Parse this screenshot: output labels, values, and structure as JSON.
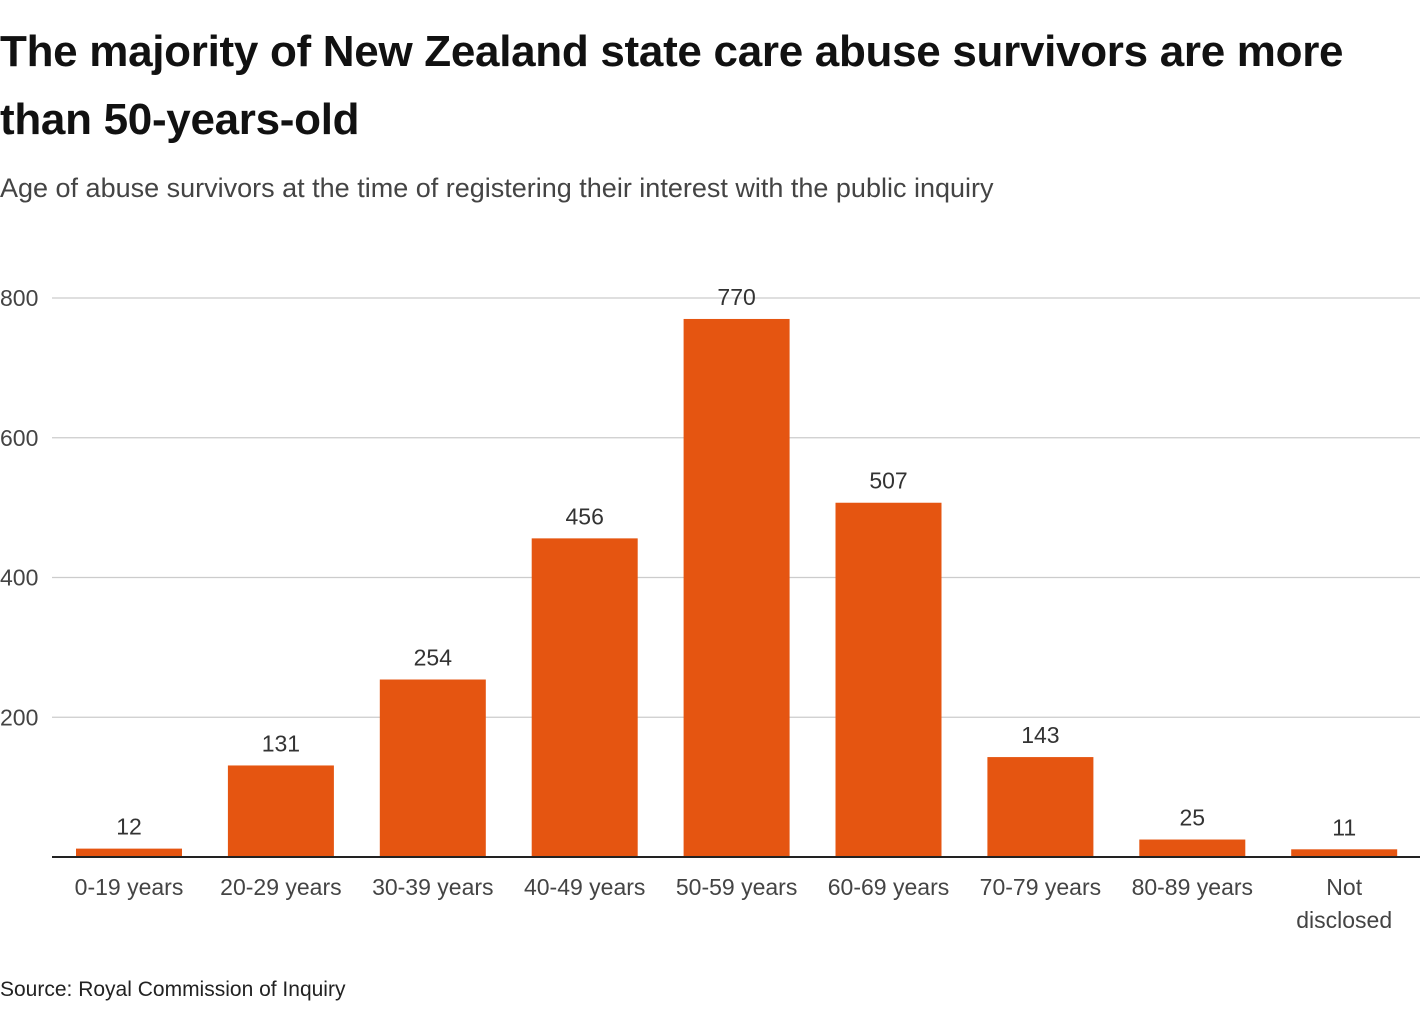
{
  "header": {
    "title": "The majority of New Zealand state care abuse survivors are more than 50-years-old",
    "subtitle": "Age of abuse survivors at the time of registering their interest with the public inquiry"
  },
  "footer": {
    "source": "Source: Royal Commission of Inquiry"
  },
  "colors": {
    "bar": "#E55511",
    "grid": "#cccccc",
    "baseline": "#222222"
  },
  "chart_data": {
    "type": "bar",
    "title": "The majority of New Zealand state care abuse survivors are more than 50-years-old",
    "subtitle": "Age of abuse survivors at the time of registering their interest with the public inquiry",
    "xlabel": "",
    "ylabel": "",
    "categories": [
      "0-19 years",
      "20-29 years",
      "30-39 years",
      "40-49 years",
      "50-59 years",
      "60-69 years",
      "70-79 years",
      "80-89 years",
      "Not disclosed"
    ],
    "category_lines": [
      [
        "0-19 years"
      ],
      [
        "20-29 years"
      ],
      [
        "30-39 years"
      ],
      [
        "40-49 years"
      ],
      [
        "50-59 years"
      ],
      [
        "60-69 years"
      ],
      [
        "70-79 years"
      ],
      [
        "80-89 years"
      ],
      [
        "Not",
        "disclosed"
      ]
    ],
    "values": [
      12,
      131,
      254,
      456,
      770,
      507,
      143,
      25,
      11
    ],
    "ylim": [
      0,
      800
    ],
    "yticks": [
      200,
      400,
      600,
      800
    ],
    "ytick_labels": [
      "200",
      "400",
      "600",
      "800"
    ],
    "grid": true,
    "data_labels": true
  }
}
